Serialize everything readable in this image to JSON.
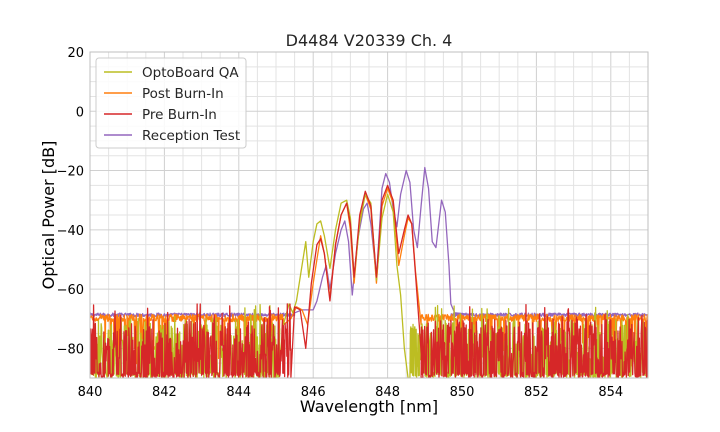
{
  "chart_data": {
    "type": "line",
    "title": "D4484 V20339 Ch. 4",
    "xlabel": "Wavelength [nm]",
    "ylabel": "Optical Power [dB]",
    "xlim": [
      840,
      855
    ],
    "ylim": [
      -90,
      20
    ],
    "x_ticks": [
      840,
      842,
      844,
      846,
      848,
      850,
      852,
      854
    ],
    "y_ticks": [
      -80,
      -60,
      -40,
      -20,
      0,
      20
    ],
    "x_tick_labels": [
      "840",
      "842",
      "844",
      "846",
      "848",
      "850",
      "852",
      "854"
    ],
    "y_tick_labels": [
      "−80",
      "−60",
      "−40",
      "−20",
      "0",
      "20"
    ],
    "grid": true,
    "legend_position": "top-left",
    "series": [
      {
        "name": "OptoBoard QA",
        "color": "#bcbd22",
        "noise_floor": -90,
        "noise_region_left": [
          840,
          845.1
        ],
        "noise_region_right": [
          848.6,
          855
        ],
        "points": [
          [
            845.05,
            -90
          ],
          [
            845.2,
            -72
          ],
          [
            845.35,
            -65
          ],
          [
            845.45,
            -68
          ],
          [
            845.55,
            -64
          ],
          [
            845.7,
            -52
          ],
          [
            845.8,
            -44
          ],
          [
            845.88,
            -56
          ],
          [
            846.0,
            -44
          ],
          [
            846.1,
            -38
          ],
          [
            846.2,
            -37
          ],
          [
            846.3,
            -42
          ],
          [
            846.45,
            -53
          ],
          [
            846.6,
            -40
          ],
          [
            846.75,
            -31
          ],
          [
            846.9,
            -30
          ],
          [
            847.0,
            -36
          ],
          [
            847.1,
            -56
          ],
          [
            847.25,
            -38
          ],
          [
            847.4,
            -28
          ],
          [
            847.55,
            -31
          ],
          [
            847.7,
            -57
          ],
          [
            847.85,
            -36
          ],
          [
            848.0,
            -28
          ],
          [
            848.15,
            -34
          ],
          [
            848.25,
            -52
          ],
          [
            848.35,
            -62
          ],
          [
            848.45,
            -80
          ],
          [
            848.55,
            -90
          ]
        ]
      },
      {
        "name": "Post Burn-In",
        "color": "#ff7f0e",
        "noise_floor": -72,
        "noise_region_left": [
          840,
          845.2
        ],
        "noise_region_right": [
          848.9,
          855
        ],
        "points": [
          [
            845.2,
            -72
          ],
          [
            845.4,
            -70
          ],
          [
            845.55,
            -66
          ],
          [
            845.7,
            -67
          ],
          [
            845.85,
            -72
          ],
          [
            846.0,
            -58
          ],
          [
            846.1,
            -50
          ],
          [
            846.2,
            -42
          ],
          [
            846.3,
            -48
          ],
          [
            846.45,
            -63
          ],
          [
            846.6,
            -45
          ],
          [
            846.75,
            -35
          ],
          [
            846.9,
            -31
          ],
          [
            847.0,
            -40
          ],
          [
            847.1,
            -58
          ],
          [
            847.25,
            -36
          ],
          [
            847.4,
            -28
          ],
          [
            847.55,
            -33
          ],
          [
            847.7,
            -58
          ],
          [
            847.85,
            -32
          ],
          [
            848.0,
            -26
          ],
          [
            848.15,
            -31
          ],
          [
            848.3,
            -52
          ],
          [
            848.45,
            -42
          ],
          [
            848.55,
            -36
          ],
          [
            848.65,
            -38
          ],
          [
            848.75,
            -54
          ],
          [
            848.9,
            -72
          ]
        ]
      },
      {
        "name": "Pre Burn-In",
        "color": "#d62728",
        "noise_floor": -90,
        "noise_region_left": [
          840,
          845.4
        ],
        "noise_region_right": [
          848.9,
          855
        ],
        "points": [
          [
            845.4,
            -90
          ],
          [
            845.5,
            -66
          ],
          [
            845.65,
            -67
          ],
          [
            845.8,
            -80
          ],
          [
            845.95,
            -58
          ],
          [
            846.1,
            -45
          ],
          [
            846.2,
            -43
          ],
          [
            846.3,
            -48
          ],
          [
            846.45,
            -64
          ],
          [
            846.6,
            -45
          ],
          [
            846.75,
            -35
          ],
          [
            846.9,
            -31
          ],
          [
            847.0,
            -38
          ],
          [
            847.1,
            -56
          ],
          [
            847.25,
            -35
          ],
          [
            847.4,
            -27
          ],
          [
            847.55,
            -32
          ],
          [
            847.7,
            -56
          ],
          [
            847.85,
            -30
          ],
          [
            848.0,
            -25
          ],
          [
            848.15,
            -30
          ],
          [
            848.3,
            -48
          ],
          [
            848.45,
            -40
          ],
          [
            848.55,
            -35
          ],
          [
            848.65,
            -38
          ],
          [
            848.75,
            -55
          ],
          [
            848.85,
            -72
          ],
          [
            848.95,
            -90
          ]
        ]
      },
      {
        "name": "Reception Test",
        "color": "#9467bd",
        "noise_floor": -69,
        "noise_region_left": [
          840,
          845.5
        ],
        "noise_region_right": [
          849.7,
          855
        ],
        "points": [
          [
            845.5,
            -68
          ],
          [
            845.7,
            -67
          ],
          [
            845.85,
            -67
          ],
          [
            846.0,
            -67
          ],
          [
            846.1,
            -64
          ],
          [
            846.25,
            -56
          ],
          [
            846.35,
            -52
          ],
          [
            846.45,
            -60
          ],
          [
            846.6,
            -48
          ],
          [
            846.75,
            -40
          ],
          [
            846.85,
            -37
          ],
          [
            846.95,
            -44
          ],
          [
            847.05,
            -62
          ],
          [
            847.2,
            -43
          ],
          [
            847.35,
            -33
          ],
          [
            847.45,
            -31
          ],
          [
            847.55,
            -38
          ],
          [
            847.7,
            -56
          ],
          [
            847.85,
            -26
          ],
          [
            847.95,
            -21
          ],
          [
            848.05,
            -24
          ],
          [
            848.15,
            -33
          ],
          [
            848.25,
            -39
          ],
          [
            848.35,
            -28
          ],
          [
            848.5,
            -20
          ],
          [
            848.6,
            -24
          ],
          [
            848.7,
            -40
          ],
          [
            848.8,
            -46
          ],
          [
            848.9,
            -32
          ],
          [
            849.0,
            -19
          ],
          [
            849.1,
            -26
          ],
          [
            849.2,
            -44
          ],
          [
            849.3,
            -46
          ],
          [
            849.45,
            -30
          ],
          [
            849.55,
            -34
          ],
          [
            849.65,
            -52
          ],
          [
            849.7,
            -65
          ],
          [
            849.8,
            -68
          ],
          [
            850.2,
            -68.5
          ]
        ]
      }
    ]
  }
}
